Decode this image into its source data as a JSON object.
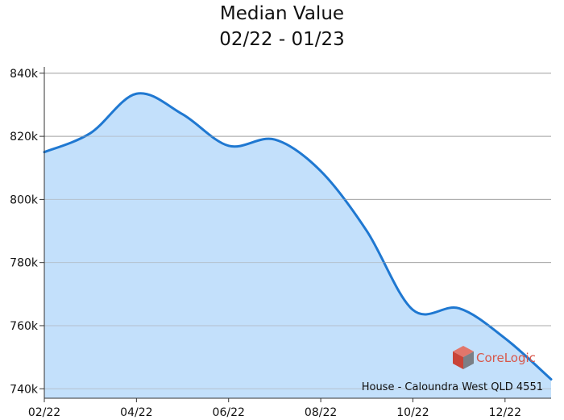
{
  "chart_data": {
    "type": "area",
    "title": "Median Value",
    "subtitle": "02/22 - 01/23",
    "xlabel": "",
    "ylabel": "",
    "x": [
      "02/22",
      "03/22",
      "04/22",
      "05/22",
      "06/22",
      "07/22",
      "08/22",
      "09/22",
      "10/22",
      "11/22",
      "12/22",
      "01/23"
    ],
    "x_tick_labels": [
      "02/22",
      "04/22",
      "06/22",
      "08/22",
      "10/22",
      "12/22"
    ],
    "series": [
      {
        "values": [
          815000,
          821000,
          833500,
          827000,
          817000,
          819000,
          809000,
          790000,
          765000,
          765500,
          756000,
          743000
        ]
      }
    ],
    "ylim": [
      737000,
      842000
    ],
    "y_ticks": [
      740000,
      760000,
      780000,
      800000,
      820000,
      840000
    ],
    "y_tick_labels": [
      "740k",
      "760k",
      "780k",
      "800k",
      "820k",
      "840k"
    ],
    "grid": true,
    "colors": {
      "line": "#1f78d1",
      "fill": "#c3e0fb",
      "grid": "#a9a9a9",
      "axis": "#333333"
    }
  },
  "footnote": "House - Caloundra West QLD 4551",
  "brand": {
    "name": "CoreLogic",
    "icon": "corelogic-cube-logo"
  }
}
